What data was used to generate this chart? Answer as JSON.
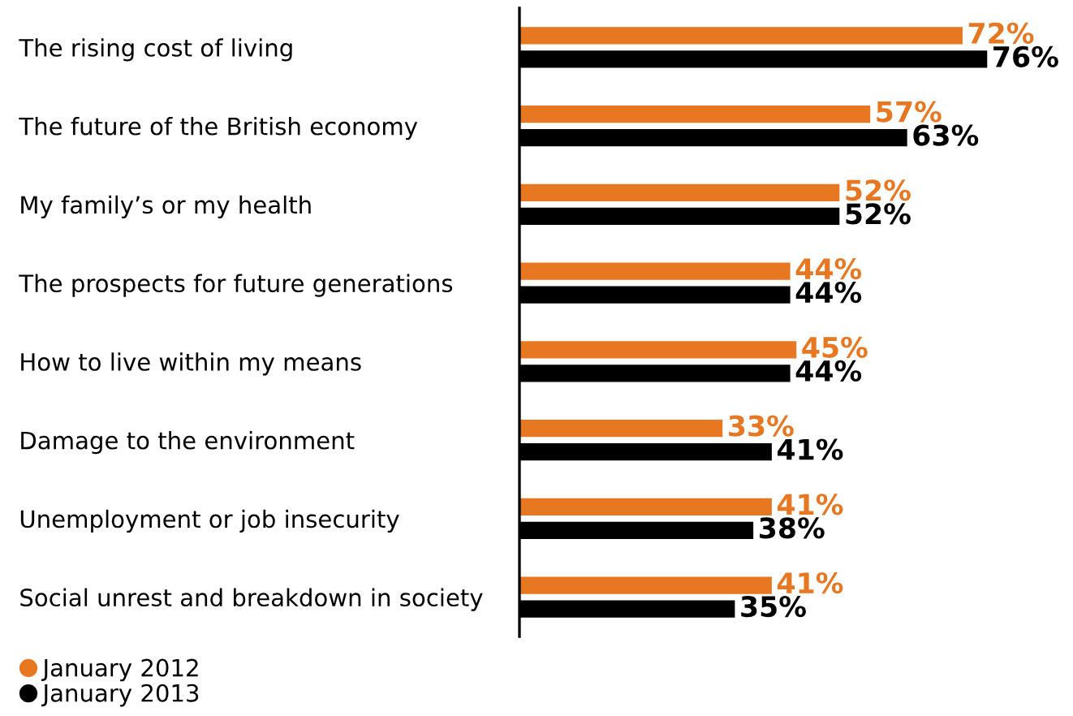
{
  "chart_data": {
    "type": "bar",
    "orientation": "horizontal",
    "categories": [
      "The rising cost of living",
      "The future of the British economy",
      "My family’s or my health",
      "The prospects for future generations",
      "How to live within my means",
      "Damage to the environment",
      "Unemployment or job insecurity",
      "Social unrest and breakdown in society"
    ],
    "series": [
      {
        "name": "January 2012",
        "color": "#e87722",
        "values": [
          72,
          57,
          52,
          44,
          45,
          33,
          41,
          41
        ],
        "value_labels": [
          "72%",
          "57%",
          "52%",
          "44%",
          "45%",
          "33%",
          "41%",
          "41%"
        ]
      },
      {
        "name": "January 2013",
        "color": "#000000",
        "values": [
          76,
          63,
          52,
          44,
          44,
          41,
          38,
          35
        ],
        "value_labels": [
          "76%",
          "63%",
          "52%",
          "44%",
          "44%",
          "41%",
          "38%",
          "35%"
        ]
      }
    ],
    "tick_labels": "y",
    "grid": false,
    "legend": "bottom left",
    "marker": "circle"
  }
}
